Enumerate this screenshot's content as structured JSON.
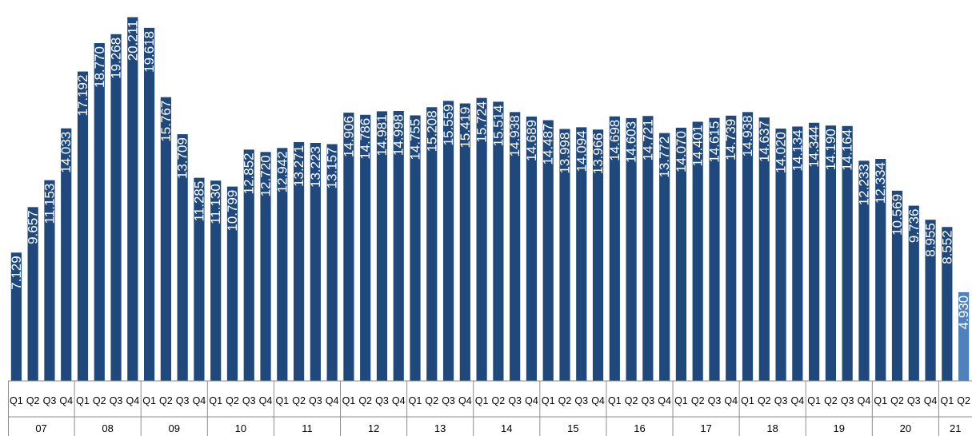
{
  "chart_data": {
    "type": "bar",
    "title": "",
    "xlabel": "",
    "ylabel": "",
    "ylim": [
      0,
      20.5
    ],
    "grid": false,
    "legend": "none",
    "colors": {
      "bar": "#1F497D",
      "highlight": "#4F81BD",
      "axis": "#8c8c8c"
    },
    "quarter_labels": [
      "Q1",
      "Q2",
      "Q3",
      "Q4"
    ],
    "years": [
      "07",
      "08",
      "09",
      "10",
      "11",
      "12",
      "13",
      "14",
      "15",
      "16",
      "17",
      "18",
      "19",
      "20",
      "21"
    ],
    "values": [
      {
        "label": "7.129",
        "y": 7.129
      },
      {
        "label": "9.657",
        "y": 9.657
      },
      {
        "label": "11.153",
        "y": 11.153
      },
      {
        "label": "14.033",
        "y": 14.033
      },
      {
        "label": "17.192",
        "y": 17.192
      },
      {
        "label": "18.770",
        "y": 18.77
      },
      {
        "label": "19.268",
        "y": 19.268
      },
      {
        "label": "20.211",
        "y": 20.211
      },
      {
        "label": "19.618",
        "y": 19.618
      },
      {
        "label": "15.767",
        "y": 15.767
      },
      {
        "label": "13.709",
        "y": 13.709
      },
      {
        "label": "11.285",
        "y": 11.285
      },
      {
        "label": "11.130",
        "y": 11.13
      },
      {
        "label": "10.799",
        "y": 10.799
      },
      {
        "label": "12.852",
        "y": 12.852
      },
      {
        "label": "12.720",
        "y": 12.72
      },
      {
        "label": "12.942",
        "y": 12.942
      },
      {
        "label": "13.271",
        "y": 13.271
      },
      {
        "label": "13.223",
        "y": 13.223
      },
      {
        "label": "13.157",
        "y": 13.157
      },
      {
        "label": "14.906",
        "y": 14.906
      },
      {
        "label": "14.786",
        "y": 14.786
      },
      {
        "label": "14.981",
        "y": 14.981
      },
      {
        "label": "14.998",
        "y": 14.998
      },
      {
        "label": "14.755",
        "y": 14.755
      },
      {
        "label": "15.208",
        "y": 15.208
      },
      {
        "label": "15.559",
        "y": 15.559
      },
      {
        "label": "15.419",
        "y": 15.419
      },
      {
        "label": "15.724",
        "y": 15.724
      },
      {
        "label": "15.514",
        "y": 15.514
      },
      {
        "label": "14.938",
        "y": 14.938
      },
      {
        "label": "14.689",
        "y": 14.689
      },
      {
        "label": "14.487",
        "y": 14.487
      },
      {
        "label": "13.998",
        "y": 13.998
      },
      {
        "label": "14.094",
        "y": 14.094
      },
      {
        "label": "13.966",
        "y": 13.966
      },
      {
        "label": "14.698",
        "y": 14.698
      },
      {
        "label": "14.603",
        "y": 14.603
      },
      {
        "label": "14.721",
        "y": 14.721
      },
      {
        "label": "13.772",
        "y": 13.772
      },
      {
        "label": "14.070",
        "y": 14.07
      },
      {
        "label": "14.401",
        "y": 14.401
      },
      {
        "label": "14.615",
        "y": 14.615
      },
      {
        "label": "14.739",
        "y": 14.739
      },
      {
        "label": "14.938",
        "y": 14.938
      },
      {
        "label": "14.637",
        "y": 14.637
      },
      {
        "label": "14.020",
        "y": 14.02
      },
      {
        "label": "14.134",
        "y": 14.134
      },
      {
        "label": "14.344",
        "y": 14.344
      },
      {
        "label": "14.190",
        "y": 14.19
      },
      {
        "label": "14.164",
        "y": 14.164
      },
      {
        "label": "12.233",
        "y": 12.233
      },
      {
        "label": "12.334",
        "y": 12.334
      },
      {
        "label": "10.569",
        "y": 10.569
      },
      {
        "label": "9.736",
        "y": 9.736
      },
      {
        "label": "8.955",
        "y": 8.955
      },
      {
        "label": "8.552",
        "y": 8.552
      },
      {
        "label": "4.930",
        "y": 4.93,
        "highlight": true
      }
    ]
  }
}
